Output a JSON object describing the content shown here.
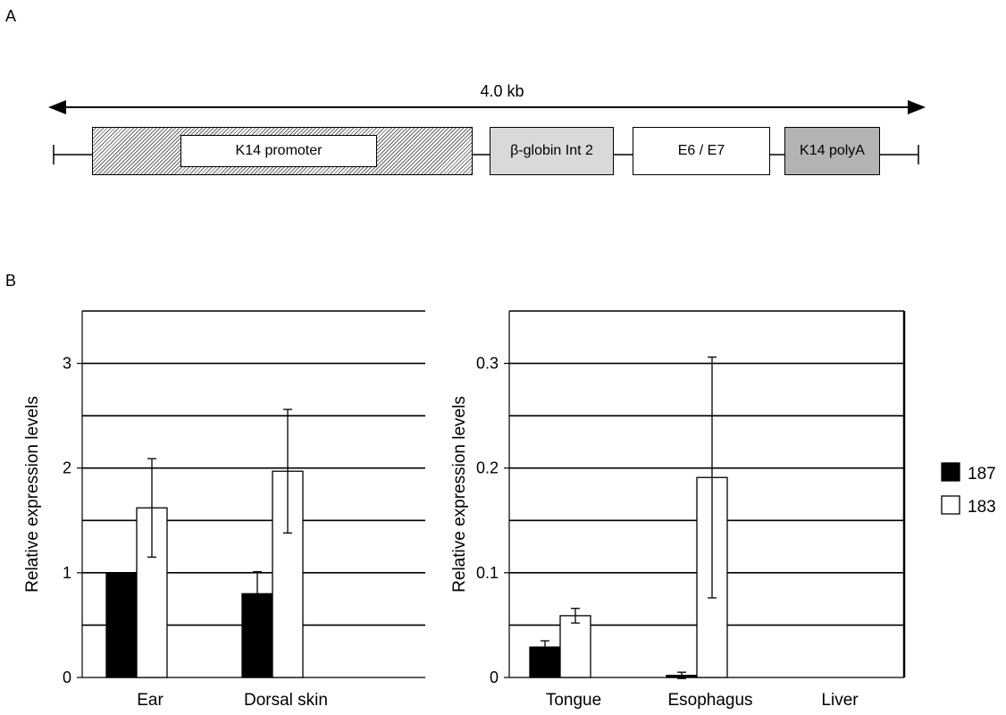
{
  "panels": {
    "a": "A",
    "b": "B"
  },
  "construct": {
    "length_label": "4.0 kb",
    "segments": [
      {
        "label": "K14 promoter",
        "color": "#ffffff"
      },
      {
        "label": "β-globin Int 2",
        "color": "#d9d9d9"
      },
      {
        "label": "E6 / E7",
        "color": "#ffffff"
      },
      {
        "label": "K14 polyA",
        "color": "#b3b3b3"
      }
    ]
  },
  "legend": [
    {
      "label": "187",
      "color": "#000000"
    },
    {
      "label": "183",
      "color": "#ffffff"
    }
  ],
  "chart_data": [
    {
      "type": "bar",
      "ylabel": "Relative expression levels",
      "ylim": [
        0,
        3.5
      ],
      "yticks": [
        "0",
        "1",
        "2",
        "3"
      ],
      "grid": true,
      "categories": [
        "Ear",
        "Dorsal skin"
      ],
      "series": [
        {
          "name": "187",
          "values": [
            1.0,
            0.8
          ],
          "errors": [
            0,
            0.21
          ]
        },
        {
          "name": "183",
          "values": [
            1.62,
            1.97
          ],
          "errors": [
            0.47,
            0.59
          ]
        }
      ]
    },
    {
      "type": "bar",
      "ylabel": "Relative expression levels",
      "ylim": [
        0,
        0.35
      ],
      "yticks": [
        "0",
        "0.1",
        "0.2",
        "0.3"
      ],
      "grid": true,
      "categories": [
        "Tongue",
        "Esophagus",
        "Liver"
      ],
      "series": [
        {
          "name": "187",
          "values": [
            0.029,
            0.002,
            0
          ],
          "errors": [
            0.006,
            0.003,
            0
          ]
        },
        {
          "name": "183",
          "values": [
            0.059,
            0.191,
            0
          ],
          "errors": [
            0.007,
            0.115,
            0
          ]
        }
      ]
    }
  ]
}
